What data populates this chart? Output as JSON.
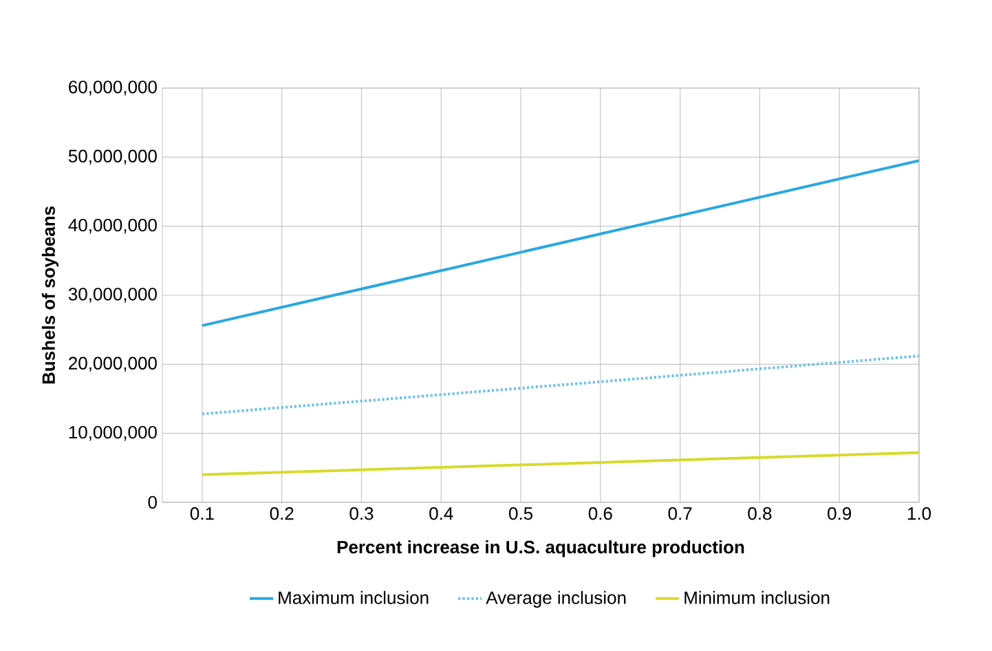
{
  "chart_data": {
    "type": "line",
    "xlabel": "Percent increase in U.S. aquaculture production",
    "ylabel": "Bushels of soybeans",
    "xlim": [
      0.05,
      1.0
    ],
    "xticks": [
      0.1,
      0.2,
      0.3,
      0.4,
      0.5,
      0.6,
      0.7,
      0.8,
      0.9,
      {
        "value": 1.0,
        "label": "1.0"
      }
    ],
    "ylim": [
      0,
      60000000
    ],
    "yticks": [
      {
        "value": 0,
        "label": "0"
      },
      {
        "value": 10000000,
        "label": "10,000,000"
      },
      {
        "value": 20000000,
        "label": "20,000,000"
      },
      {
        "value": 30000000,
        "label": "30,000,000"
      },
      {
        "value": 40000000,
        "label": "40,000,000"
      },
      {
        "value": 50000000,
        "label": "50,000,000"
      },
      {
        "value": 60000000,
        "label": "60,000,000"
      }
    ],
    "x": [
      0.1,
      1.0
    ],
    "grid": true,
    "legend": "bottom",
    "marker": "none",
    "series": [
      {
        "name": "Maximum inclusion",
        "color": "#29a8e0",
        "values": [
          25600000,
          49500000
        ],
        "line_style": "solid"
      },
      {
        "name": "Average inclusion",
        "color": "#6cc1e6",
        "values": [
          12800000,
          21200000
        ],
        "line_style": "dotted"
      },
      {
        "name": "Minimum inclusion",
        "color": "#d4dc2a",
        "values": [
          4000000,
          7200000
        ],
        "line_style": "solid"
      }
    ]
  }
}
